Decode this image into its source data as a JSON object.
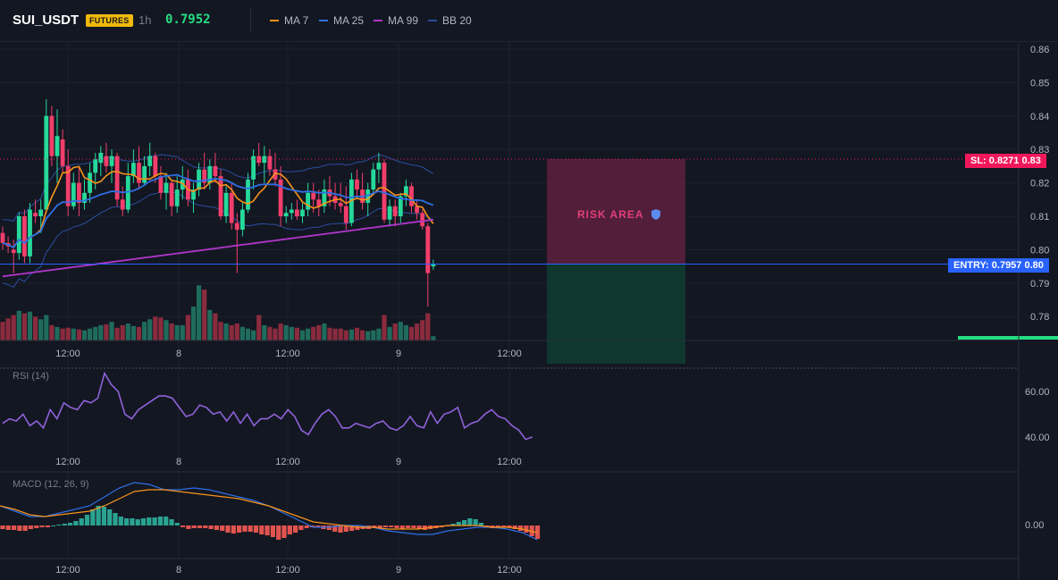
{
  "header": {
    "symbol": "SUI_USDT",
    "badge": "FUTURES",
    "timeframe": "1h",
    "price": "0.7952",
    "indicators": [
      {
        "label": "MA 7",
        "color": "#f7931a"
      },
      {
        "label": "MA 25",
        "color": "#2f6fe4"
      },
      {
        "label": "MA 99",
        "color": "#b036c9"
      },
      {
        "label": "BB 20",
        "color": "#2a4ea0"
      }
    ]
  },
  "price_axis": [
    "0.86",
    "0.85",
    "0.84",
    "0.83",
    "0.82",
    "0.81",
    "0.80",
    "0.79",
    "0.78"
  ],
  "time_axis": [
    "12:00",
    "8",
    "12:00",
    "9",
    "12:00"
  ],
  "sl_label": "SL: 0.8271",
  "sl_price": "0.83",
  "entry_label": "ENTRY: 0.7957",
  "entry_price": "0.80",
  "risk_label": "RISK AREA",
  "rsi": {
    "title": "RSI (14)",
    "axis": [
      "60.00",
      "40.00"
    ]
  },
  "macd": {
    "title": "MACD (12, 26, 9)",
    "axis": [
      "0.00"
    ]
  },
  "colors": {
    "up": "#26d99a",
    "down": "#f23e6b",
    "risk": "#5a1f3c",
    "reward": "#0f3b32"
  },
  "chart_data": {
    "type": "candlestick",
    "x": [
      "12:00",
      "8",
      "12:00",
      "9",
      "12:00"
    ],
    "stop_loss": 0.8271,
    "entry": 0.7957,
    "ylim": [
      0.775,
      0.86
    ],
    "rsi_range": [
      40,
      60
    ],
    "macd_zero": 0.0
  }
}
